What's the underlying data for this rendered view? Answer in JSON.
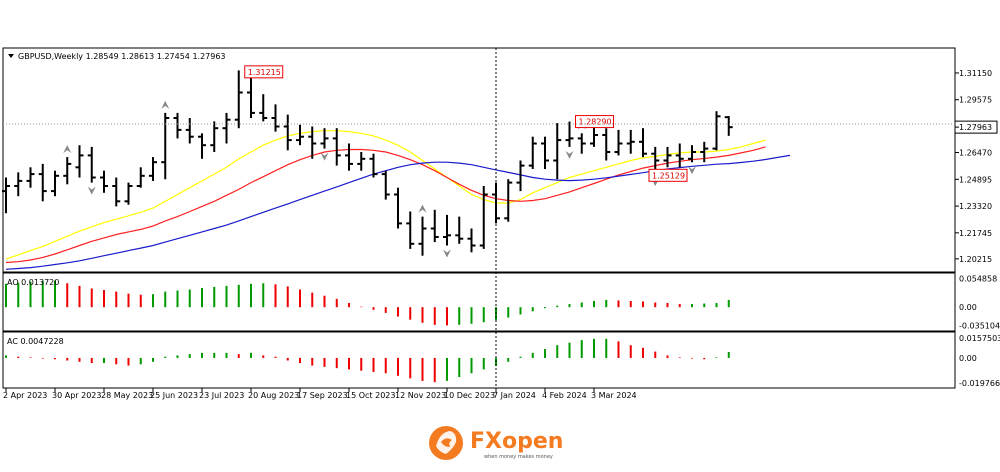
{
  "window": {
    "symbol_line": "GBPUSD,Weekly  1.28549 1.28613 1.27454 1.27963",
    "menu_icon": "triangle-down-icon"
  },
  "brand": {
    "name": "FXopen",
    "tagline": "when money makes money",
    "accent": "#f47b20"
  },
  "chart_data": [
    {
      "type": "ohlc",
      "ylim": [
        1.195,
        1.325
      ],
      "yticks": [
        "1.31150",
        "1.29575",
        "1.27963",
        "1.26470",
        "1.24895",
        "1.23320",
        "1.21745",
        "1.20215"
      ],
      "current_price": "1.27963",
      "grid": false,
      "crosshair_x_label": "7 Jan 2024",
      "xlabels": [
        "2 Apr 2023",
        "30 Apr 2023",
        "28 May 2023",
        "25 Jun 2023",
        "23 Jul 2023",
        "20 Aug 2023",
        "17 Sep 2023",
        "15 Oct 2023",
        "12 Nov 2023",
        "10 Dec 2023",
        "7 Jan 2024",
        "4 Feb 2024",
        "3 Mar 2024"
      ],
      "annotations": [
        {
          "text": "1.31215",
          "kind": "high"
        },
        {
          "text": "1.28290",
          "kind": "high"
        },
        {
          "text": "1.25129",
          "kind": "low"
        }
      ],
      "bars": [
        [
          1.242,
          1.25,
          1.229,
          1.245
        ],
        [
          1.245,
          1.253,
          1.239,
          1.248
        ],
        [
          1.248,
          1.256,
          1.244,
          1.252
        ],
        [
          1.252,
          1.258,
          1.236,
          1.242
        ],
        [
          1.242,
          1.254,
          1.239,
          1.251
        ],
        [
          1.251,
          1.262,
          1.246,
          1.258
        ],
        [
          1.256,
          1.269,
          1.25,
          1.263
        ],
        [
          1.263,
          1.268,
          1.247,
          1.25
        ],
        [
          1.25,
          1.254,
          1.241,
          1.245
        ],
        [
          1.245,
          1.25,
          1.233,
          1.236
        ],
        [
          1.236,
          1.247,
          1.234,
          1.245
        ],
        [
          1.245,
          1.256,
          1.244,
          1.251
        ],
        [
          1.251,
          1.262,
          1.248,
          1.259
        ],
        [
          1.259,
          1.288,
          1.249,
          1.285
        ],
        [
          1.285,
          1.288,
          1.273,
          1.278
        ],
        [
          1.278,
          1.285,
          1.27,
          1.274
        ],
        [
          1.274,
          1.276,
          1.261,
          1.269
        ],
        [
          1.269,
          1.283,
          1.265,
          1.279
        ],
        [
          1.279,
          1.288,
          1.27,
          1.284
        ],
        [
          1.284,
          1.313,
          1.279,
          1.3
        ],
        [
          1.3,
          1.312,
          1.285,
          1.288
        ],
        [
          1.288,
          1.299,
          1.283,
          1.285
        ],
        [
          1.285,
          1.293,
          1.277,
          1.28
        ],
        [
          1.28,
          1.287,
          1.266,
          1.272
        ],
        [
          1.272,
          1.281,
          1.269,
          1.274
        ],
        [
          1.274,
          1.28,
          1.261,
          1.27
        ],
        [
          1.27,
          1.279,
          1.267,
          1.273
        ],
        [
          1.273,
          1.279,
          1.257,
          1.263
        ],
        [
          1.263,
          1.27,
          1.254,
          1.258
        ],
        [
          1.258,
          1.265,
          1.254,
          1.261
        ],
        [
          1.261,
          1.264,
          1.25,
          1.252
        ],
        [
          1.252,
          1.254,
          1.237,
          1.24
        ],
        [
          1.24,
          1.244,
          1.22,
          1.223
        ],
        [
          1.223,
          1.23,
          1.208,
          1.211
        ],
        [
          1.211,
          1.227,
          1.204,
          1.22
        ],
        [
          1.22,
          1.231,
          1.212,
          1.215
        ],
        [
          1.215,
          1.228,
          1.21,
          1.216
        ],
        [
          1.216,
          1.227,
          1.211,
          1.214
        ],
        [
          1.214,
          1.22,
          1.206,
          1.21
        ],
        [
          1.21,
          1.245,
          1.208,
          1.24
        ],
        [
          1.24,
          1.247,
          1.223,
          1.226
        ],
        [
          1.226,
          1.249,
          1.224,
          1.247
        ],
        [
          1.247,
          1.26,
          1.242,
          1.257
        ],
        [
          1.257,
          1.274,
          1.255,
          1.27
        ],
        [
          1.27,
          1.274,
          1.255,
          1.26
        ],
        [
          1.26,
          1.282,
          1.249,
          1.272
        ],
        [
          1.272,
          1.2829,
          1.268,
          1.273
        ],
        [
          1.273,
          1.276,
          1.264,
          1.27
        ],
        [
          1.27,
          1.281,
          1.268,
          1.275
        ],
        [
          1.275,
          1.279,
          1.26,
          1.265
        ],
        [
          1.265,
          1.278,
          1.263,
          1.27
        ],
        [
          1.27,
          1.278,
          1.264,
          1.271
        ],
        [
          1.271,
          1.279,
          1.262,
          1.264
        ],
        [
          1.264,
          1.268,
          1.252,
          1.26
        ],
        [
          1.26,
          1.268,
          1.256,
          1.263
        ],
        [
          1.263,
          1.27,
          1.256,
          1.261
        ],
        [
          1.261,
          1.269,
          1.259,
          1.265
        ],
        [
          1.265,
          1.271,
          1.259,
          1.267
        ],
        [
          1.267,
          1.289,
          1.266,
          1.286
        ],
        [
          1.2855,
          1.2861,
          1.2745,
          1.2796
        ]
      ],
      "series": [
        {
          "color": "#ffff00",
          "start": 0,
          "values": [
            1.202,
            1.2045,
            1.207,
            1.2095,
            1.2125,
            1.2155,
            1.2185,
            1.221,
            1.2235,
            1.2255,
            1.2275,
            1.2295,
            1.232,
            1.236,
            1.24,
            1.244,
            1.248,
            1.252,
            1.256,
            1.261,
            1.265,
            1.269,
            1.272,
            1.2745,
            1.276,
            1.277,
            1.2775,
            1.2775,
            1.277,
            1.276,
            1.2745,
            1.272,
            1.269,
            1.265,
            1.26,
            1.255,
            1.25,
            1.245,
            1.24,
            1.237,
            1.235,
            1.235,
            1.237,
            1.241,
            1.244,
            1.247,
            1.25,
            1.252,
            1.254,
            1.256,
            1.258,
            1.26,
            1.2615,
            1.2625,
            1.2635,
            1.2645,
            1.265,
            1.265,
            1.2655,
            1.2665,
            1.268,
            1.27,
            1.272
          ]
        },
        {
          "color": "#ff2020",
          "start": 0,
          "values": [
            1.2,
            1.2005,
            1.2015,
            1.203,
            1.205,
            1.2075,
            1.21,
            1.2125,
            1.2145,
            1.2165,
            1.218,
            1.2195,
            1.2215,
            1.2245,
            1.227,
            1.23,
            1.233,
            1.236,
            1.2395,
            1.243,
            1.247,
            1.2505,
            1.254,
            1.2575,
            1.2605,
            1.263,
            1.265,
            1.266,
            1.2665,
            1.2665,
            1.266,
            1.265,
            1.263,
            1.2605,
            1.2575,
            1.254,
            1.25,
            1.246,
            1.2425,
            1.2395,
            1.2375,
            1.2365,
            1.236,
            1.2365,
            1.2375,
            1.2395,
            1.2415,
            1.244,
            1.2465,
            1.249,
            1.2515,
            1.2535,
            1.2555,
            1.257,
            1.2585,
            1.2595,
            1.2605,
            1.2612,
            1.262,
            1.263,
            1.2645,
            1.266,
            1.268
          ]
        },
        {
          "color": "#1a1acc",
          "start": 0,
          "values": [
            1.196,
            1.1965,
            1.197,
            1.1978,
            1.1988,
            1.1998,
            1.201,
            1.2025,
            1.204,
            1.2055,
            1.207,
            1.2085,
            1.21,
            1.212,
            1.214,
            1.216,
            1.218,
            1.22,
            1.222,
            1.2245,
            1.227,
            1.2295,
            1.232,
            1.2345,
            1.237,
            1.2395,
            1.242,
            1.2445,
            1.247,
            1.2495,
            1.252,
            1.254,
            1.256,
            1.2575,
            1.2585,
            1.259,
            1.259,
            1.2585,
            1.2575,
            1.256,
            1.2545,
            1.253,
            1.2515,
            1.25,
            1.249,
            1.2485,
            1.2482,
            1.2485,
            1.249,
            1.2498,
            1.2508,
            1.2518,
            1.2528,
            1.254,
            1.255,
            1.2558,
            1.2566,
            1.2572,
            1.2578,
            1.2582,
            1.2588,
            1.2596,
            1.2606,
            1.2618,
            1.263
          ]
        }
      ],
      "markers": [
        {
          "bar": 13,
          "dir": "up"
        },
        {
          "bar": 5,
          "dir": "up"
        },
        {
          "bar": 7,
          "dir": "down"
        },
        {
          "bar": 26,
          "dir": "down"
        },
        {
          "bar": 34,
          "dir": "up"
        },
        {
          "bar": 36,
          "dir": "down"
        },
        {
          "bar": 46,
          "dir": "down"
        },
        {
          "bar": 47,
          "dir": "up"
        },
        {
          "bar": 53,
          "dir": "down"
        },
        {
          "bar": 56,
          "dir": "down"
        }
      ]
    },
    {
      "type": "bar",
      "name": "AO 0.013720",
      "ylim": [
        -0.042,
        0.06
      ],
      "yticks": [
        "0.054858",
        "0.00",
        "-0.035104"
      ],
      "values": [
        0.045,
        0.047,
        0.049,
        0.05,
        0.051,
        0.046,
        0.041,
        0.036,
        0.033,
        0.03,
        0.026,
        0.024,
        0.025,
        0.03,
        0.032,
        0.034,
        0.037,
        0.039,
        0.041,
        0.043,
        0.045,
        0.046,
        0.044,
        0.04,
        0.034,
        0.028,
        0.022,
        0.016,
        0.008,
        0.001,
        -0.005,
        -0.011,
        -0.018,
        -0.024,
        -0.03,
        -0.034,
        -0.035,
        -0.034,
        -0.032,
        -0.029,
        -0.025,
        -0.02,
        -0.014,
        -0.008,
        -0.002,
        0.003,
        0.006,
        0.009,
        0.012,
        0.014,
        0.013,
        0.012,
        0.011,
        0.009,
        0.008,
        0.006,
        0.006,
        0.007,
        0.008,
        0.014
      ],
      "colors_up_down": [
        "#009900",
        "#ee0000"
      ]
    },
    {
      "type": "bar",
      "name": "AC 0.0047228",
      "ylim": [
        -0.022,
        0.018
      ],
      "yticks": [
        "0.0157503",
        "0.00",
        "-0.019766"
      ],
      "values": [
        0.002,
        0.001,
        0.0005,
        -0.0005,
        -0.001,
        -0.002,
        -0.003,
        -0.004,
        -0.004,
        -0.005,
        -0.006,
        -0.005,
        -0.003,
        0.001,
        0.002,
        0.003,
        0.004,
        0.004,
        0.004,
        0.003,
        0.004,
        0.002,
        0.001,
        -0.002,
        -0.004,
        -0.006,
        -0.007,
        -0.008,
        -0.009,
        -0.01,
        -0.011,
        -0.012,
        -0.014,
        -0.016,
        -0.018,
        -0.019,
        -0.018,
        -0.015,
        -0.012,
        -0.009,
        -0.006,
        -0.003,
        0.001,
        0.004,
        0.007,
        0.01,
        0.012,
        0.014,
        0.015,
        0.015,
        0.013,
        0.01,
        0.008,
        0.005,
        0.002,
        0.0005,
        -0.0005,
        -0.001,
        0.0005,
        0.0047
      ],
      "colors_up_down": [
        "#009900",
        "#ee0000"
      ]
    }
  ]
}
